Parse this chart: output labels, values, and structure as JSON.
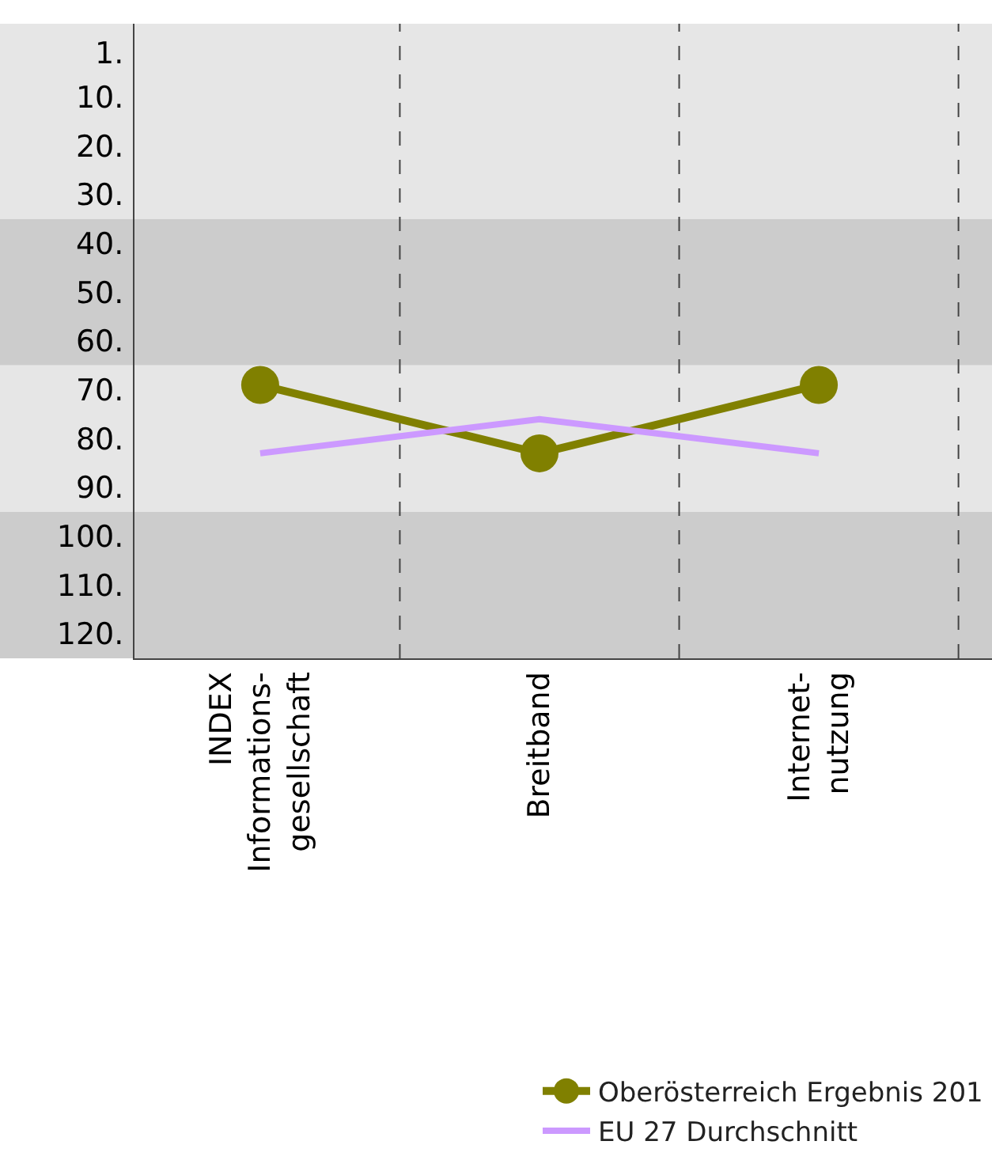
{
  "chart_data": {
    "type": "line",
    "categories": [
      "INDEX\nInformations-\ngesellschaft",
      "Breitband",
      "Internet-\nnutzung"
    ],
    "series": [
      {
        "name": "Oberösterreich Ergebnis 201",
        "color": "#808000",
        "values": [
          69,
          83,
          69
        ],
        "marker": "circle"
      },
      {
        "name": "EU 27 Durchschnitt",
        "color": "#cc99ff",
        "values": [
          83,
          76,
          83
        ],
        "marker": "none"
      }
    ],
    "ylim": [
      125,
      -5
    ],
    "yticks": [
      {
        "value": 1,
        "label": "1."
      },
      {
        "value": 10,
        "label": "10."
      },
      {
        "value": 20,
        "label": "20."
      },
      {
        "value": 30,
        "label": "30."
      },
      {
        "value": 40,
        "label": "40."
      },
      {
        "value": 50,
        "label": "50."
      },
      {
        "value": 60,
        "label": "60."
      },
      {
        "value": 70,
        "label": "70."
      },
      {
        "value": 80,
        "label": "80."
      },
      {
        "value": 90,
        "label": "90."
      },
      {
        "value": 100,
        "label": "100."
      },
      {
        "value": 110,
        "label": "110."
      },
      {
        "value": 120,
        "label": "120."
      }
    ],
    "bands": [
      {
        "axis": "y",
        "from": -5,
        "to": 35,
        "color": "#e6e6e6"
      },
      {
        "axis": "y",
        "from": 35,
        "to": 65,
        "color": "#cccccc"
      },
      {
        "axis": "y",
        "from": 65,
        "to": 95,
        "color": "#e6e6e6"
      },
      {
        "axis": "y",
        "from": 95,
        "to": 125,
        "color": "#cccccc"
      }
    ],
    "grid": "x",
    "legend": "bottom right",
    "line_style": "solid"
  }
}
